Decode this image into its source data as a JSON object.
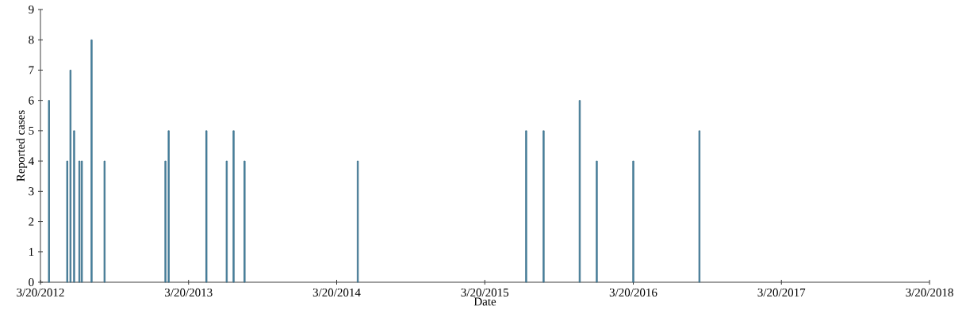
{
  "chart_data": {
    "type": "bar",
    "xlabel": "Date",
    "ylabel": "Reported cases",
    "x": [
      "2012-04-10",
      "2012-05-25",
      "2012-06-02",
      "2012-06-11",
      "2012-06-24",
      "2012-06-30",
      "2012-07-24",
      "2012-08-25",
      "2013-01-22",
      "2013-01-30",
      "2013-05-03",
      "2013-06-22",
      "2013-07-09",
      "2013-08-05",
      "2014-05-11",
      "2015-06-30",
      "2015-08-12",
      "2015-11-09",
      "2015-12-21",
      "2016-03-20",
      "2016-08-30"
    ],
    "values": [
      6,
      4,
      7,
      5,
      4,
      4,
      8,
      4,
      4,
      5,
      5,
      4,
      5,
      4,
      4,
      5,
      5,
      6,
      4,
      4,
      5
    ],
    "color": "#4a88a8",
    "xlim": [
      "2012-03-20",
      "2018-03-20"
    ],
    "xticks": [
      {
        "value": "2012-03-20",
        "label": "3/20/2012"
      },
      {
        "value": "2013-03-20",
        "label": "3/20/2013"
      },
      {
        "value": "2014-03-20",
        "label": "3/20/2014"
      },
      {
        "value": "2015-03-20",
        "label": "3/20/2015"
      },
      {
        "value": "2016-03-20",
        "label": "3/20/2016"
      },
      {
        "value": "2017-03-20",
        "label": "3/20/2017"
      },
      {
        "value": "2018-03-20",
        "label": "3/20/2018"
      }
    ],
    "ylim": [
      0,
      9
    ],
    "yticks": [
      0,
      1,
      2,
      3,
      4,
      5,
      6,
      7,
      8,
      9
    ]
  }
}
